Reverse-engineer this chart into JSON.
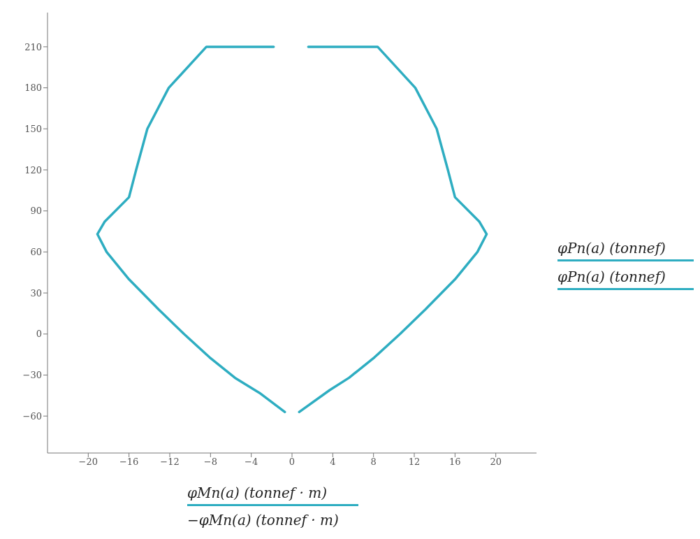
{
  "chart_data": {
    "type": "line",
    "xlabel": "φMn(a)  (tonnef · m)",
    "ylabel": "φPn(a)  (tonnef)",
    "annotations": [
      "−φMn(a)  (tonnef · m)",
      "φPn(a)  (tonnef)"
    ],
    "xlim": [
      -24,
      24
    ],
    "ylim": [
      -87,
      235
    ],
    "xticks": [
      -20,
      -16,
      -12,
      -8,
      -4,
      0,
      4,
      8,
      12,
      16,
      20
    ],
    "yticks": [
      -60,
      -30,
      0,
      30,
      60,
      90,
      120,
      150,
      180,
      210
    ],
    "grid": false,
    "marker": "none",
    "line_style": "solid",
    "series": [
      {
        "color": "#2eadc1",
        "x": [
          1.6,
          8.4,
          12.1,
          14.2,
          15.3,
          16.0,
          18.4,
          19.1,
          18.2,
          16.0,
          13.1,
          10.6,
          8.1,
          5.6,
          3.7,
          0.7
        ],
        "values": [
          210,
          210,
          180,
          150,
          120,
          100,
          82,
          73,
          60,
          40,
          18,
          0,
          -17,
          -32,
          -41,
          -57
        ]
      },
      {
        "color": "#2eadc1",
        "x": [
          -1.8,
          -8.4,
          -12.1,
          -14.2,
          -15.3,
          -16.0,
          -18.4,
          -19.1,
          -18.2,
          -16.0,
          -13.1,
          -10.6,
          -8.1,
          -5.6,
          -3.2,
          -0.7
        ],
        "values": [
          210,
          210,
          180,
          150,
          120,
          100,
          82,
          73,
          60,
          40,
          18,
          0,
          -17,
          -32,
          -43,
          -57
        ]
      }
    ]
  }
}
